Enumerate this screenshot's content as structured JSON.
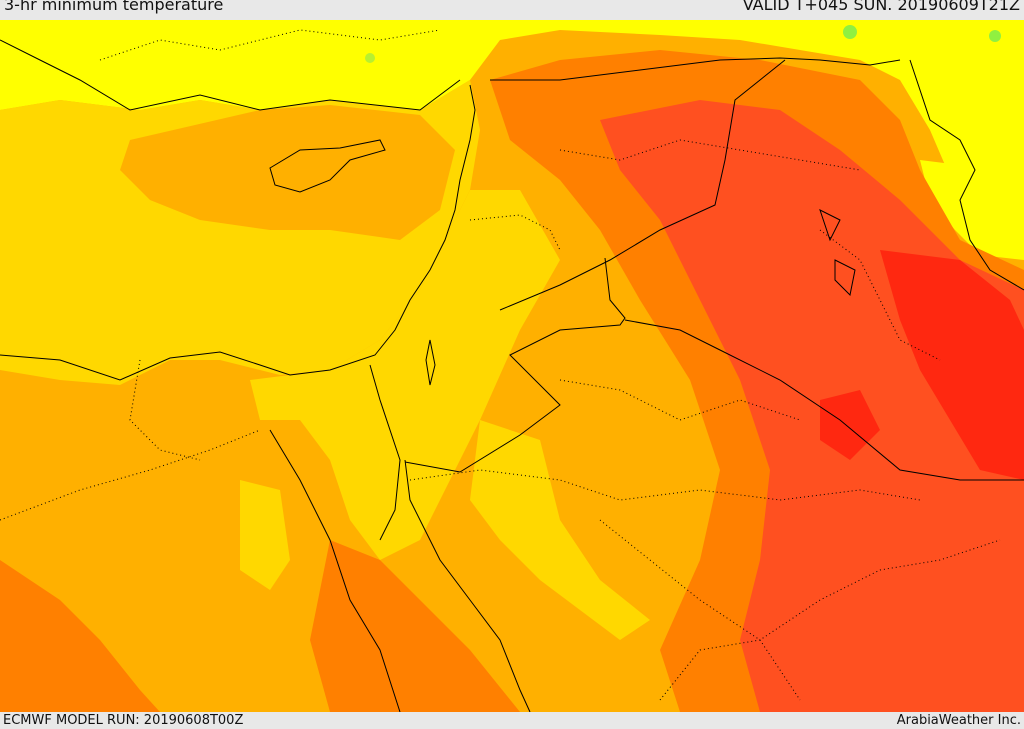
{
  "header": {
    "title": "3-hr minimum temperature",
    "valid_time": "VALID T+045 SUN. 20190609T21Z"
  },
  "footer": {
    "model_run": "ECMWF MODEL RUN: 20190608T00Z",
    "credit": "ArabiaWeather Inc."
  },
  "colors": {
    "light_yellow": "#ffff00",
    "yellow": "#ffd800",
    "amber": "#ffb000",
    "orange": "#ff8000",
    "red_orange": "#ff5020",
    "red": "#ff2810",
    "light_green": "#90f040",
    "border_line": "#000000"
  }
}
